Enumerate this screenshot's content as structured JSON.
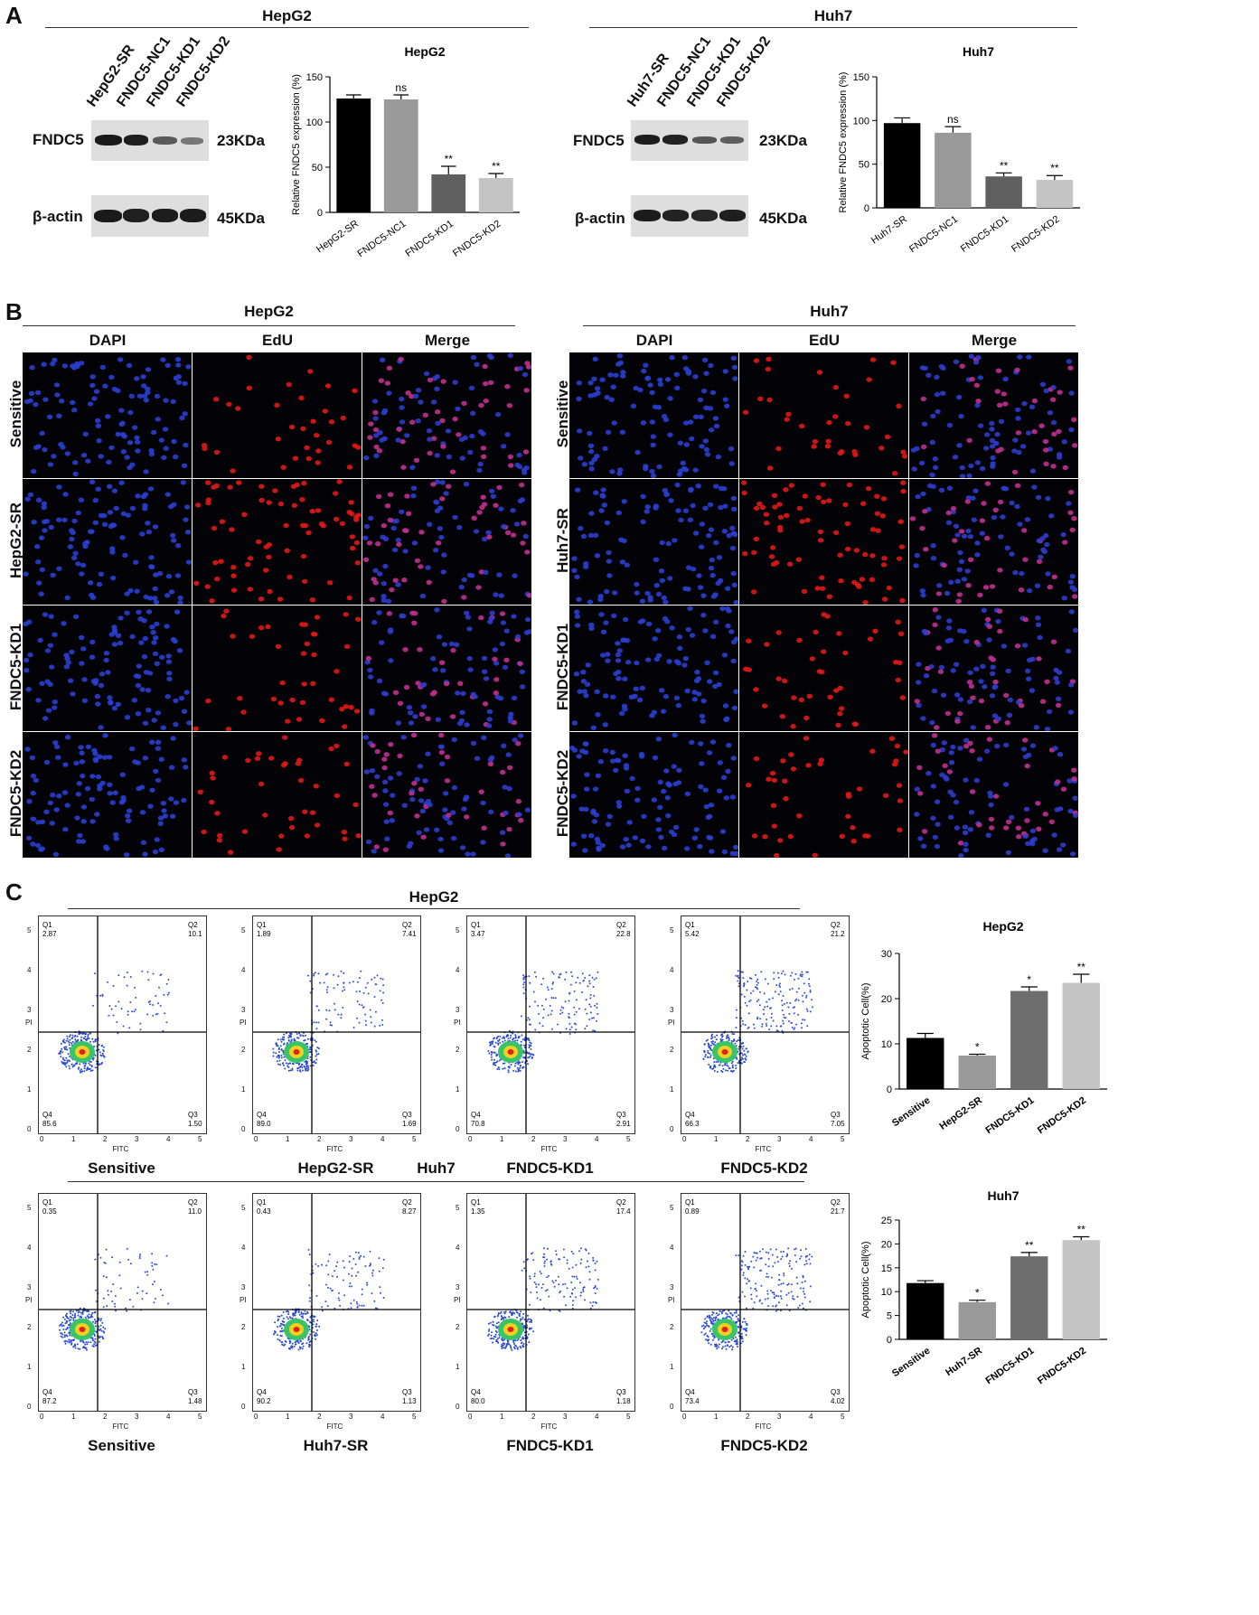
{
  "panels": {
    "a": {
      "letter": "A",
      "hepg2": {
        "title": "HepG2",
        "lanes": [
          "HepG2-SR",
          "FNDC5-NC1",
          "FNDC5-KD1",
          "FNDC5-KD2"
        ],
        "protein1": "FNDC5",
        "size1": "23KDa",
        "protein2": "β-actin",
        "size2": "45KDa"
      },
      "huh7": {
        "title": "Huh7",
        "lanes": [
          "Huh7-SR",
          "FNDC5-NC1",
          "FNDC5-KD1",
          "FNDC5-KD2"
        ],
        "protein1": "FNDC5",
        "size1": "23KDa",
        "protein2": "β-actin",
        "size2": "45KDa"
      }
    },
    "b": {
      "letter": "B",
      "hepg2": {
        "title": "HepG2",
        "cols": [
          "DAPI",
          "EdU",
          "Merge"
        ],
        "rows": [
          "Sensitive",
          "HepG2-SR",
          "FNDC5-KD1",
          "FNDC5-KD2"
        ]
      },
      "huh7": {
        "title": "Huh7",
        "cols": [
          "DAPI",
          "EdU",
          "Merge"
        ],
        "rows": [
          "Sensitive",
          "Huh7-SR",
          "FNDC5-KD1",
          "FNDC5-KD2"
        ]
      }
    },
    "c": {
      "letter": "C",
      "hepg2": {
        "title": "HepG2",
        "plots": [
          {
            "label": "Sensitive",
            "q1": "2.87",
            "q2": "10.1",
            "q3": "1.50",
            "q4": "85.6"
          },
          {
            "label": "HepG2-SR",
            "q1": "1.89",
            "q2": "7.41",
            "q3": "1.69",
            "q4": "89.0"
          },
          {
            "label": "FNDC5-KD1",
            "q1": "3.47",
            "q2": "22.8",
            "q3": "2.91",
            "q4": "70.8"
          },
          {
            "label": "FNDC5-KD2",
            "q1": "5.42",
            "q2": "21.2",
            "q3": "7.05",
            "q4": "66.3"
          }
        ]
      },
      "huh7": {
        "title": "Huh7",
        "plots": [
          {
            "label": "Sensitive",
            "q1": "0.35",
            "q2": "11.0",
            "q3": "1.48",
            "q4": "87.2"
          },
          {
            "label": "Huh7-SR",
            "q1": "0.43",
            "q2": "8.27",
            "q3": "1.13",
            "q4": "90.2"
          },
          {
            "label": "FNDC5-KD1",
            "q1": "1.35",
            "q2": "17.4",
            "q3": "1.18",
            "q4": "80.0"
          },
          {
            "label": "FNDC5-KD2",
            "q1": "0.89",
            "q2": "21.7",
            "q3": "4.02",
            "q4": "73.4"
          }
        ]
      },
      "flow_axes": {
        "x": "FITC",
        "y": "PI",
        "quadrants": [
          "Q1",
          "Q2",
          "Q3",
          "Q4"
        ],
        "ticks": [
          "0",
          "1",
          "2",
          "3",
          "4",
          "5"
        ]
      }
    }
  },
  "chart_data": [
    {
      "type": "bar",
      "title": "HepG2",
      "ylabel": "Relative FNDC5 expression (%)",
      "categories": [
        "HepG2-SR",
        "FNDC5-NC1",
        "FNDC5-KD1",
        "FNDC5-KD2"
      ],
      "values": [
        126,
        125,
        42,
        38
      ],
      "errors": [
        4,
        5,
        9,
        5
      ],
      "annotations": [
        "",
        "ns",
        "**",
        "**"
      ],
      "ylim": [
        0,
        150
      ],
      "yticks": [
        0,
        50,
        100,
        150
      ],
      "colors": [
        "#000000",
        "#9a9a9a",
        "#606060",
        "#c4c4c4"
      ]
    },
    {
      "type": "bar",
      "title": "Huh7",
      "ylabel": "Relative FNDC5 expression (%)",
      "categories": [
        "Huh7-SR",
        "FNDC5-NC1",
        "FNDC5-KD1",
        "FNDC5-KD2"
      ],
      "values": [
        97,
        86,
        36,
        32
      ],
      "errors": [
        6,
        7,
        4,
        5
      ],
      "annotations": [
        "",
        "ns",
        "**",
        "**"
      ],
      "ylim": [
        0,
        150
      ],
      "yticks": [
        0,
        50,
        100,
        150
      ],
      "colors": [
        "#000000",
        "#9a9a9a",
        "#606060",
        "#c4c4c4"
      ]
    },
    {
      "type": "bar",
      "title": "HepG2",
      "ylabel": "Apoptotic Cell(%)",
      "categories": [
        "Sensitive",
        "HepG2-SR",
        "FNDC5-KD1",
        "FNDC5-KD2"
      ],
      "values": [
        11.3,
        7.4,
        21.7,
        23.5
      ],
      "errors": [
        1.0,
        0.3,
        0.9,
        1.9
      ],
      "annotations": [
        "",
        "*",
        "*",
        "**"
      ],
      "ylim": [
        0,
        30
      ],
      "yticks": [
        0,
        10,
        20,
        30
      ],
      "colors": [
        "#000000",
        "#9a9a9a",
        "#6e6e6e",
        "#c4c4c4"
      ]
    },
    {
      "type": "bar",
      "title": "Huh7",
      "ylabel": "Apoptotic Cell(%)",
      "categories": [
        "Sensitive",
        "Huh7-SR",
        "FNDC5-KD1",
        "FNDC5-KD2"
      ],
      "values": [
        11.8,
        7.8,
        17.4,
        20.8
      ],
      "errors": [
        0.5,
        0.4,
        0.8,
        0.7
      ],
      "annotations": [
        "",
        "*",
        "**",
        "**"
      ],
      "ylim": [
        0,
        25
      ],
      "yticks": [
        0,
        5,
        10,
        15,
        20,
        25
      ],
      "colors": [
        "#000000",
        "#9a9a9a",
        "#6e6e6e",
        "#c4c4c4"
      ]
    }
  ]
}
